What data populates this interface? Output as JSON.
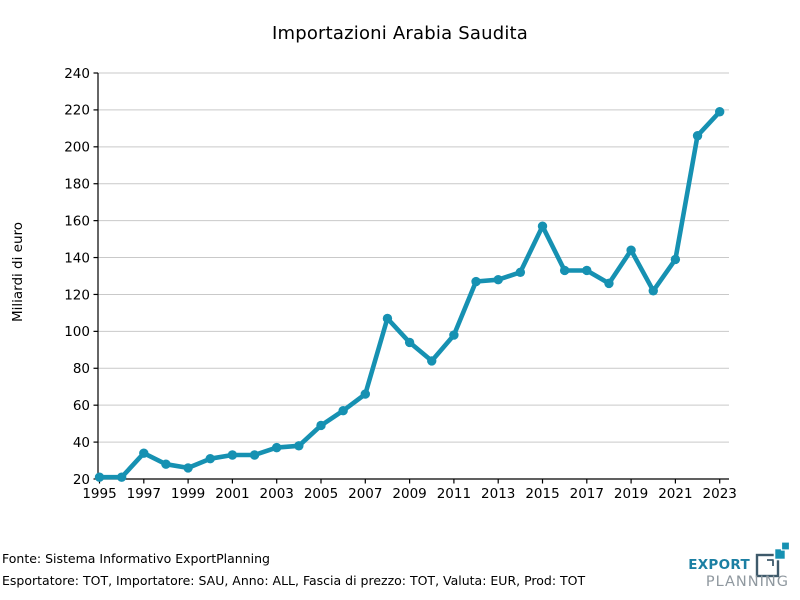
{
  "chart_data": {
    "type": "line",
    "title": "Importazioni Arabia Saudita",
    "xlabel": "",
    "ylabel": "Miliardi di euro",
    "series_name": "Importazioni Arabia Saudita",
    "x": [
      1995,
      1996,
      1997,
      1998,
      1999,
      2000,
      2001,
      2002,
      2003,
      2004,
      2005,
      2006,
      2007,
      2008,
      2009,
      2010,
      2011,
      2012,
      2013,
      2014,
      2015,
      2016,
      2017,
      2018,
      2019,
      2020,
      2021,
      2022,
      2023
    ],
    "values": [
      21,
      21,
      34,
      28,
      26,
      31,
      33,
      33,
      37,
      38,
      49,
      57,
      66,
      107,
      94,
      84,
      98,
      127,
      128,
      132,
      157,
      133,
      133,
      126,
      144,
      122,
      139,
      206,
      219
    ],
    "ylim": [
      20,
      240
    ],
    "ytick_step": 20,
    "xticks": [
      1995,
      1997,
      1999,
      2001,
      2003,
      2005,
      2007,
      2009,
      2011,
      2013,
      2015,
      2017,
      2019,
      2021,
      2023
    ],
    "grid": "horizontal",
    "legend_position": "none",
    "line_color": "#1691b2",
    "grid_color": "#c9c9c9",
    "axis_color": "#000000",
    "marker": "circle"
  },
  "footer": {
    "line1": "Fonte: Sistema Informativo ExportPlanning",
    "line2": "Esportatore: TOT, Importatore: SAU, Anno: ALL, Fascia di prezzo: TOT, Valuta: EUR, Prod: TOT"
  },
  "logo": {
    "line1": "EXPORT",
    "line2": "PLANNING",
    "export_color": "#1b7fa3",
    "planning_color": "#8f989f",
    "icon_dark": "#3e5a6b",
    "icon_teal": "#1691b2"
  }
}
